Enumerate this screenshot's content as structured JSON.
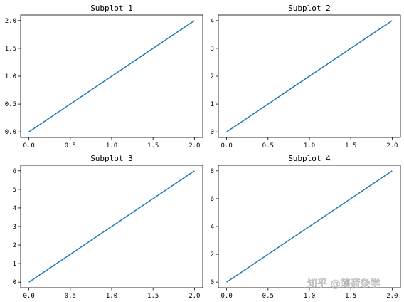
{
  "figure": {
    "watermark": "知乎 @薄荷杂学"
  },
  "colors": {
    "series": "#1f77b4"
  },
  "chart_data": [
    {
      "type": "line",
      "title": "Subplot 1",
      "x": [
        0,
        2
      ],
      "y": [
        0,
        2
      ],
      "xlim": [
        -0.1,
        2.1
      ],
      "ylim": [
        -0.1,
        2.1
      ],
      "xticks": [
        0,
        0.5,
        1,
        1.5,
        2
      ],
      "xtick_labels": [
        "0.0",
        "0.5",
        "1.0",
        "1.5",
        "2.0"
      ],
      "yticks": [
        0,
        0.5,
        1,
        1.5,
        2
      ],
      "ytick_labels": [
        "0.0",
        "0.5",
        "1.0",
        "1.5",
        "2.0"
      ],
      "grid": false
    },
    {
      "type": "line",
      "title": "Subplot 2",
      "x": [
        0,
        2
      ],
      "y": [
        0,
        4
      ],
      "xlim": [
        -0.1,
        2.1
      ],
      "ylim": [
        -0.2,
        4.2
      ],
      "xticks": [
        0,
        0.5,
        1,
        1.5,
        2
      ],
      "xtick_labels": [
        "0.0",
        "0.5",
        "1.0",
        "1.5",
        "2.0"
      ],
      "yticks": [
        0,
        1,
        2,
        3,
        4
      ],
      "ytick_labels": [
        "0",
        "1",
        "2",
        "3",
        "4"
      ],
      "grid": false
    },
    {
      "type": "line",
      "title": "Subplot 3",
      "x": [
        0,
        2
      ],
      "y": [
        0,
        6
      ],
      "xlim": [
        -0.1,
        2.1
      ],
      "ylim": [
        -0.3,
        6.3
      ],
      "xticks": [
        0,
        0.5,
        1,
        1.5,
        2
      ],
      "xtick_labels": [
        "0.0",
        "0.5",
        "1.0",
        "1.5",
        "2.0"
      ],
      "yticks": [
        0,
        1,
        2,
        3,
        4,
        5,
        6
      ],
      "ytick_labels": [
        "0",
        "1",
        "2",
        "3",
        "4",
        "5",
        "6"
      ],
      "grid": false
    },
    {
      "type": "line",
      "title": "Subplot 4",
      "x": [
        0,
        2
      ],
      "y": [
        0,
        8
      ],
      "xlim": [
        -0.1,
        2.1
      ],
      "ylim": [
        -0.4,
        8.4
      ],
      "xticks": [
        0,
        0.5,
        1,
        1.5,
        2
      ],
      "xtick_labels": [
        "0.0",
        "0.5",
        "1.0",
        "1.5",
        "2.0"
      ],
      "yticks": [
        0,
        2,
        4,
        6,
        8
      ],
      "ytick_labels": [
        "0",
        "2",
        "4",
        "6",
        "8"
      ],
      "grid": false
    }
  ]
}
